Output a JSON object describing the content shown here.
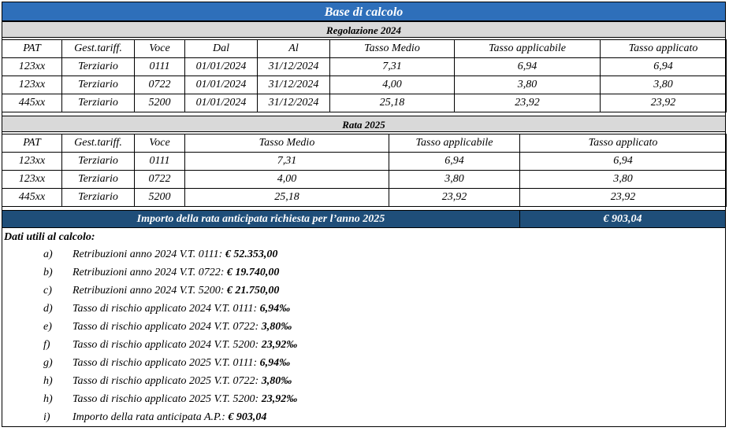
{
  "title": "Base di calcolo",
  "section1": {
    "title": "Regolazione 2024",
    "headers": [
      "PAT",
      "Gest.tariff.",
      "Voce",
      "Dal",
      "Al",
      "Tasso Medio",
      "Tasso applicabile",
      "Tasso applicato"
    ],
    "rows": [
      [
        "123xx",
        "Terziario",
        "0111",
        "01/01/2024",
        "31/12/2024",
        "7,31",
        "6,94",
        "6,94"
      ],
      [
        "123xx",
        "Terziario",
        "0722",
        "01/01/2024",
        "31/12/2024",
        "4,00",
        "3,80",
        "3,80"
      ],
      [
        "445xx",
        "Terziario",
        "5200",
        "01/01/2024",
        "31/12/2024",
        "25,18",
        "23,92",
        "23,92"
      ]
    ]
  },
  "section2": {
    "title": "Rata 2025",
    "headers": [
      "PAT",
      "Gest.tariff.",
      "Voce",
      "Tasso Medio",
      "Tasso applicabile",
      "Tasso applicato"
    ],
    "rows": [
      [
        "123xx",
        "Terziario",
        "0111",
        "7,31",
        "6,94",
        "6,94"
      ],
      [
        "123xx",
        "Terziario",
        "0722",
        "4,00",
        "3,80",
        "3,80"
      ],
      [
        "445xx",
        "Terziario",
        "5200",
        "25,18",
        "23,92",
        "23,92"
      ]
    ]
  },
  "total": {
    "label": "Importo della rata anticipata richiesta per l’anno 2025",
    "value": "€ 903,04"
  },
  "notes": {
    "title": "Dati utili al calcolo:",
    "items": [
      {
        "letter": "a)",
        "text": "Retribuzioni anno 2024 V.T. 0111: ",
        "value": "€ 52.353,00"
      },
      {
        "letter": "b)",
        "text": "Retribuzioni anno 2024 V.T. 0722: ",
        "value": "€ 19.740,00"
      },
      {
        "letter": "c)",
        "text": "Retribuzioni anno 2024 V.T. 5200: ",
        "value": "€ 21.750,00"
      },
      {
        "letter": "d)",
        "text": "Tasso di rischio applicato 2024 V.T. 0111: ",
        "value": "6,94‰"
      },
      {
        "letter": "e)",
        "text": "Tasso di rischio applicato 2024 V.T. 0722: ",
        "value": "3,80‰"
      },
      {
        "letter": "f)",
        "text": "Tasso di rischio applicato 2024 V.T. 5200: ",
        "value": "23,92‰"
      },
      {
        "letter": "g)",
        "text": "Tasso di rischio applicato 2025 V.T. 0111: ",
        "value": "6,94‰"
      },
      {
        "letter": "h)",
        "text": "Tasso di rischio applicato 2025 V.T. 0722: ",
        "value": "3,80‰"
      },
      {
        "letter": "h)",
        "text": "Tasso di rischio applicato 2025 V.T. 5200: ",
        "value": "23,92‰"
      },
      {
        "letter": "i)",
        "text": "Importo della rata anticipata A.P.: ",
        "value": "€ 903,04"
      }
    ]
  }
}
